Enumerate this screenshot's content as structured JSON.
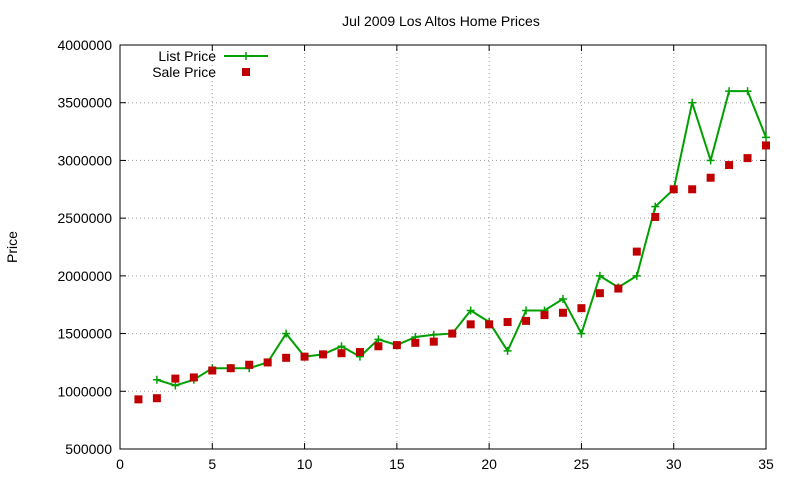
{
  "chart_data": {
    "type": "line",
    "title": "Jul 2009 Los Altos Home Prices",
    "xlabel": "",
    "ylabel": "Price",
    "xlim": [
      0,
      35
    ],
    "ylim": [
      500000,
      4000000
    ],
    "xticks": [
      0,
      5,
      10,
      15,
      20,
      25,
      30,
      35
    ],
    "yticks": [
      500000,
      1000000,
      1500000,
      2000000,
      2500000,
      3000000,
      3500000,
      4000000
    ],
    "xtick_labels": [
      "0",
      "5",
      "10",
      "15",
      "20",
      "25",
      "30",
      "35"
    ],
    "ytick_labels": [
      "500000",
      "1000000",
      "1500000",
      "2000000",
      "2500000",
      "3000000",
      "3500000",
      "4000000"
    ],
    "grid": true,
    "legend_position": "top-left",
    "x": [
      1,
      2,
      3,
      4,
      5,
      6,
      7,
      8,
      9,
      10,
      11,
      12,
      13,
      14,
      15,
      16,
      17,
      18,
      19,
      20,
      21,
      22,
      23,
      24,
      25,
      26,
      27,
      28,
      29,
      30,
      31,
      32,
      33,
      34,
      35
    ],
    "series": [
      {
        "name": "List Price",
        "style": "line-plus",
        "color": "#00a000",
        "values": [
          null,
          1100000,
          1050000,
          1100000,
          1200000,
          1200000,
          1200000,
          1250000,
          1500000,
          1300000,
          1320000,
          1390000,
          1300000,
          1450000,
          1400000,
          1470000,
          1490000,
          1500000,
          1700000,
          1600000,
          1350000,
          1700000,
          1700000,
          1800000,
          1500000,
          2000000,
          1900000,
          2000000,
          2600000,
          2750000,
          3500000,
          3000000,
          3600000,
          3600000,
          3200000
        ]
      },
      {
        "name": "Sale Price",
        "style": "square",
        "color": "#c00000",
        "values": [
          930000,
          940000,
          1110000,
          1120000,
          1180000,
          1200000,
          1230000,
          1250000,
          1290000,
          1300000,
          1320000,
          1330000,
          1340000,
          1390000,
          1400000,
          1420000,
          1430000,
          1500000,
          1580000,
          1580000,
          1600000,
          1610000,
          1660000,
          1680000,
          1720000,
          1850000,
          1890000,
          2210000,
          2510000,
          2750000,
          2750000,
          2850000,
          2960000,
          3020000,
          3130000
        ]
      }
    ]
  }
}
